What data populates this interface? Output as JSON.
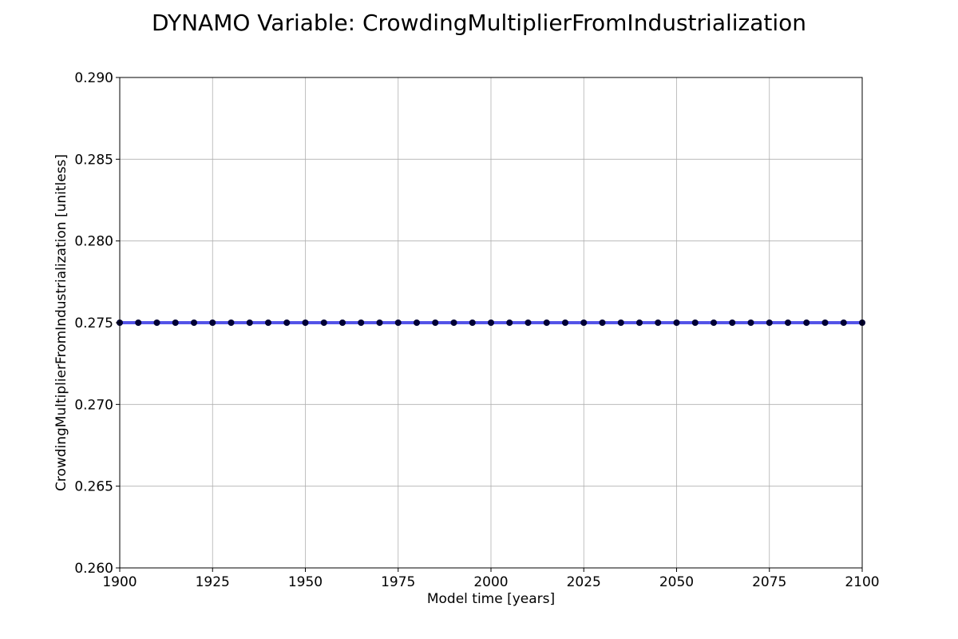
{
  "chart_data": {
    "type": "line",
    "title": "DYNAMO Variable: CrowdingMultiplierFromIndustrialization",
    "xlabel": "Model time [years]",
    "ylabel": "CrowdingMultiplierFromIndustrialization [unitless]",
    "xlim": [
      1900,
      2100
    ],
    "ylim": [
      0.26,
      0.29
    ],
    "xticks": [
      1900,
      1925,
      1950,
      1975,
      2000,
      2025,
      2050,
      2075,
      2100
    ],
    "xtick_labels": [
      "1900",
      "1925",
      "1950",
      "1975",
      "2000",
      "2025",
      "2050",
      "2075",
      "2100"
    ],
    "yticks": [
      0.26,
      0.265,
      0.27,
      0.275,
      0.28,
      0.285,
      0.29
    ],
    "ytick_labels": [
      "0.260",
      "0.265",
      "0.270",
      "0.275",
      "0.280",
      "0.285",
      "0.290"
    ],
    "grid": true,
    "series": [
      {
        "line_color": "#3a3ae8",
        "marker_color": "#000033",
        "x": [
          1900,
          1905,
          1910,
          1915,
          1920,
          1925,
          1930,
          1935,
          1940,
          1945,
          1950,
          1955,
          1960,
          1965,
          1970,
          1975,
          1980,
          1985,
          1990,
          1995,
          2000,
          2005,
          2010,
          2015,
          2020,
          2025,
          2030,
          2035,
          2040,
          2045,
          2050,
          2055,
          2060,
          2065,
          2070,
          2075,
          2080,
          2085,
          2090,
          2095,
          2100
        ],
        "values": [
          0.275,
          0.275,
          0.275,
          0.275,
          0.275,
          0.275,
          0.275,
          0.275,
          0.275,
          0.275,
          0.275,
          0.275,
          0.275,
          0.275,
          0.275,
          0.275,
          0.275,
          0.275,
          0.275,
          0.275,
          0.275,
          0.275,
          0.275,
          0.275,
          0.275,
          0.275,
          0.275,
          0.275,
          0.275,
          0.275,
          0.275,
          0.275,
          0.275,
          0.275,
          0.275,
          0.275,
          0.275,
          0.275,
          0.275,
          0.275,
          0.275
        ]
      }
    ]
  }
}
